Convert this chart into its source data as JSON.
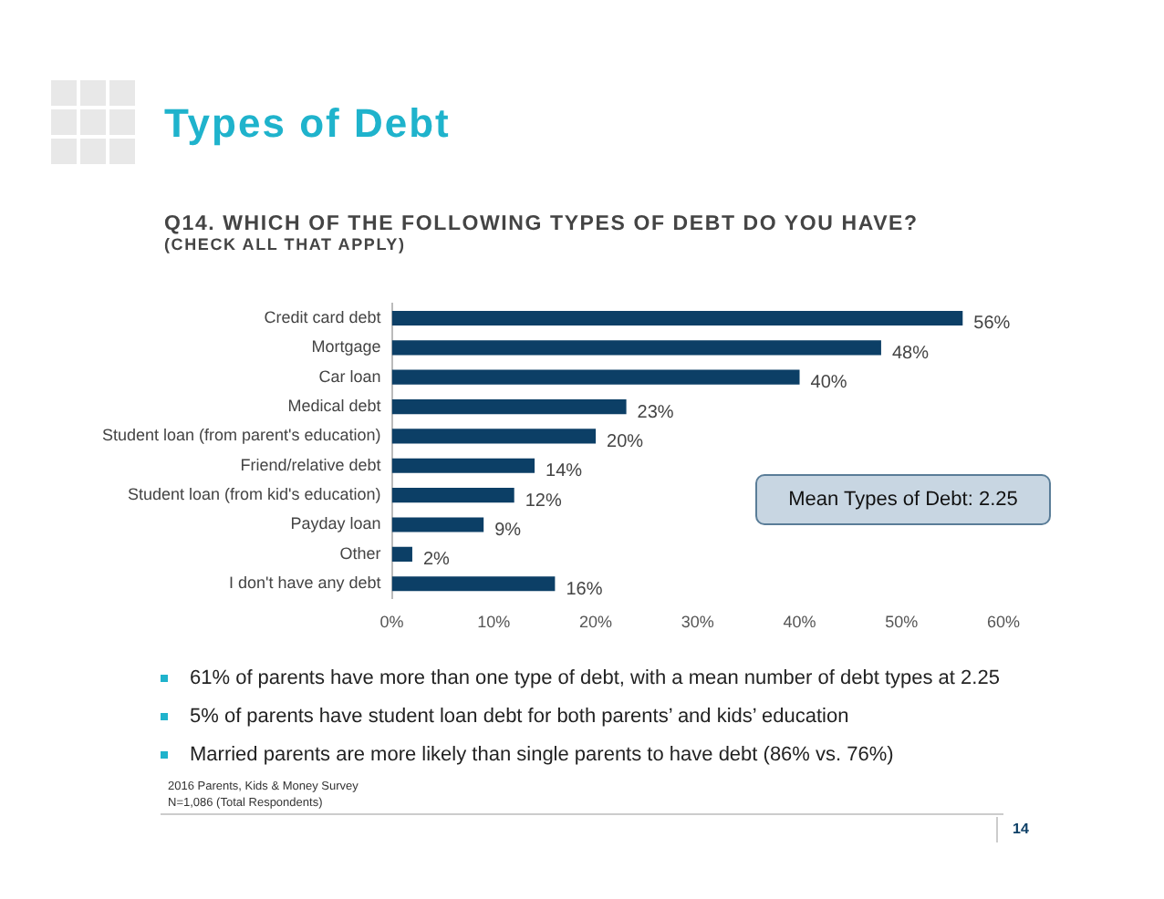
{
  "chart_data": {
    "type": "bar",
    "orientation": "horizontal",
    "title": "Types of Debt",
    "subtitle": "Q14. WHICH OF THE FOLLOWING TYPES OF DEBT DO YOU HAVE?\n(CHECK ALL THAT APPLY)",
    "categories": [
      "Credit card debt",
      "Mortgage",
      "Car loan",
      "Medical debt",
      "Student loan (from parent's education)",
      "Friend/relative debt",
      "Student loan (from kid's education)",
      "Payday loan",
      "Other",
      "I don't have any debt"
    ],
    "values": [
      56,
      48,
      40,
      23,
      20,
      14,
      12,
      9,
      2,
      16
    ],
    "color": "#0c3f66",
    "value_labels": [
      "56%",
      "48%",
      "40%",
      "23%",
      "20%",
      "14%",
      "12%",
      "9%",
      "2%",
      "16%"
    ],
    "xlim": [
      0,
      60
    ],
    "xticks": [
      {
        "value": 0,
        "label": "0%"
      },
      {
        "value": 10,
        "label": "10%"
      },
      {
        "value": 20,
        "label": "20%"
      },
      {
        "value": 30,
        "label": "30%"
      },
      {
        "value": 40,
        "label": "40%"
      },
      {
        "value": 50,
        "label": "50%"
      },
      {
        "value": 60,
        "label": "60%"
      }
    ],
    "grid": false,
    "legend": false,
    "annotations": [
      "Mean Types of Debt: 2.25",
      "61% of parents have more than one type of debt, with a mean number of debt types at 2.25",
      "5% of parents have student loan debt for both parents’ and kids’ education",
      "Married parents are more likely than single parents to have debt (86% vs. 76%)",
      "2016 Parents, Kids & Money Survey",
      "N=1,086 (Total Respondents)",
      "14"
    ]
  }
}
